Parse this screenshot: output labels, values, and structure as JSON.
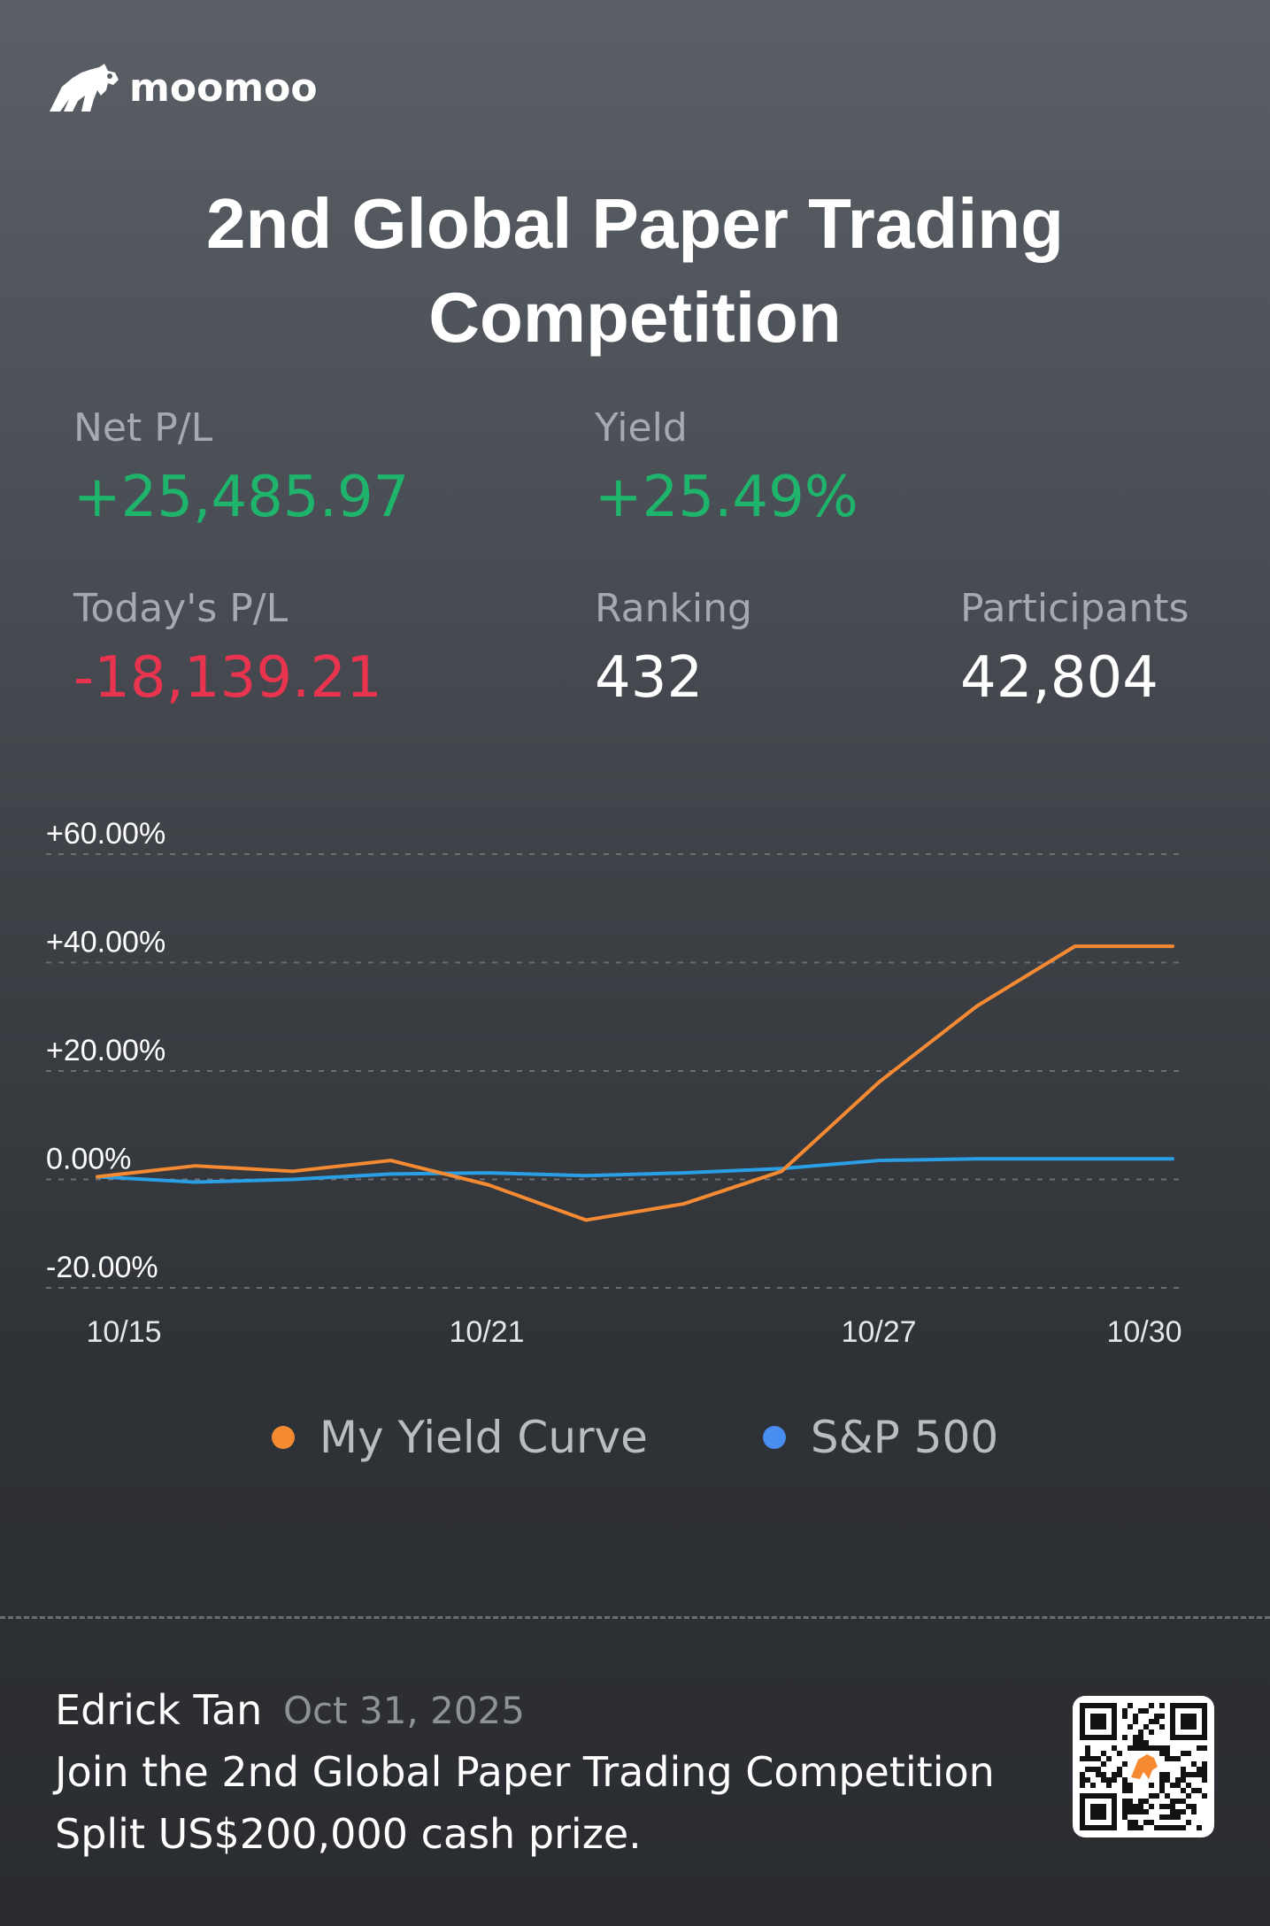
{
  "brand": {
    "name": "moomoo"
  },
  "title": "2nd Global Paper Trading Competition",
  "stats": {
    "net_pl": {
      "label": "Net P/L",
      "value": "+25,485.97",
      "color": "#1fb46c"
    },
    "yield": {
      "label": "Yield",
      "value": "+25.49%",
      "color": "#1fb46c"
    },
    "todays_pl": {
      "label": "Today's P/L",
      "value": "-18,139.21",
      "color": "#e8344e"
    },
    "ranking": {
      "label": "Ranking",
      "value": "432",
      "color": "#ffffff"
    },
    "participants": {
      "label": "Participants",
      "value": "42,804",
      "color": "#ffffff"
    }
  },
  "chart_data": {
    "type": "line",
    "y_tick_labels": [
      "+60.00%",
      "+40.00%",
      "+20.00%",
      "0.00%",
      "-20.00%"
    ],
    "y_tick_values": [
      60,
      40,
      20,
      0,
      -20
    ],
    "ylim": [
      -20,
      60
    ],
    "x_tick_labels": [
      "10/15",
      "10/21",
      "10/27",
      "10/30"
    ],
    "x_dates": [
      "10/15",
      "10/16",
      "10/17",
      "10/20",
      "10/21",
      "10/22",
      "10/23",
      "10/24",
      "10/27",
      "10/28",
      "10/29",
      "10/30"
    ],
    "grid": true,
    "legend_position": "bottom",
    "series": [
      {
        "name": "My Yield Curve",
        "color": "#f58a33",
        "values": [
          0.5,
          2.5,
          1.5,
          3.5,
          -1,
          -7.5,
          -4.5,
          1.5,
          18,
          32,
          43,
          43
        ]
      },
      {
        "name": "S&P 500",
        "color": "#2a9fe6",
        "values": [
          0.5,
          -0.5,
          0,
          1,
          1.2,
          0.7,
          1.2,
          2,
          3.5,
          3.8,
          3.8,
          3.8
        ]
      }
    ]
  },
  "legend": {
    "items": [
      {
        "label": "My Yield Curve",
        "dot_color": "#f58a33"
      },
      {
        "label": "S&P 500",
        "dot_color": "#4a8df0"
      }
    ]
  },
  "footer": {
    "user_name": "Edrick Tan",
    "date": "Oct 31, 2025",
    "line1": "Join the 2nd Global Paper Trading Competition",
    "line2": "Split US$200,000 cash prize.",
    "qr_icon": "qr-code-icon"
  }
}
